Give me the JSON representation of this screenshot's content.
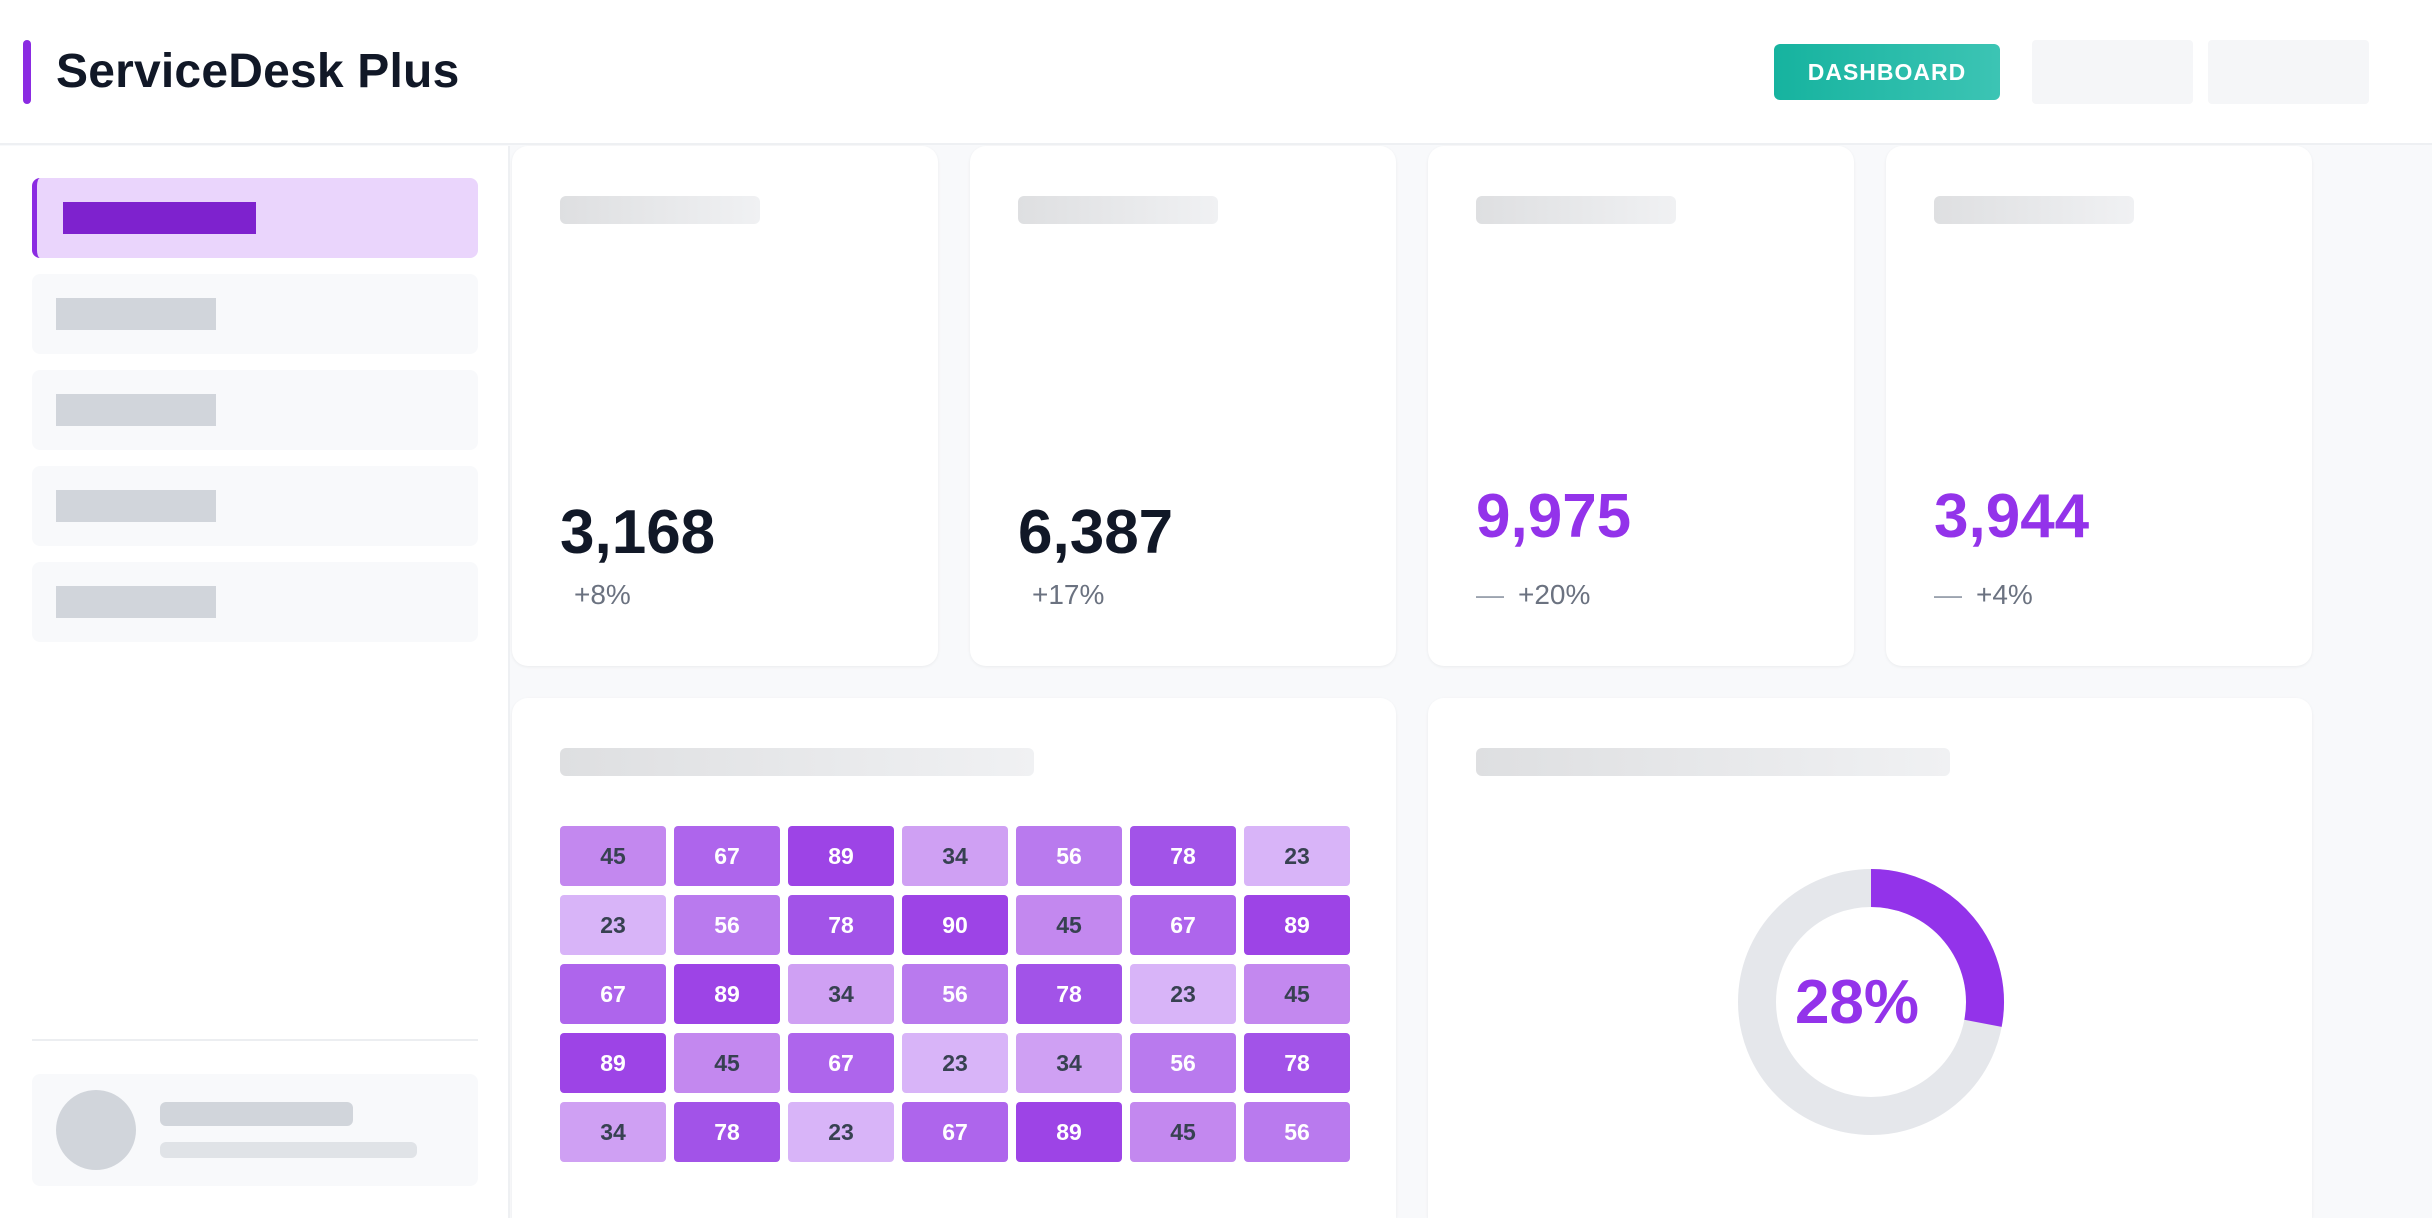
{
  "header": {
    "app_title": "ServiceDesk Plus",
    "dashboard_button": "DASHBOARD",
    "accent": "#8b2be2",
    "button_color": "#16b39f"
  },
  "sidebar": {
    "active_index": 0,
    "item_count": 5
  },
  "stats": [
    {
      "value": "3,168",
      "change": "+8%",
      "color": "#111827",
      "indicator": ""
    },
    {
      "value": "6,387",
      "change": "+17%",
      "color": "#111827",
      "indicator": ""
    },
    {
      "value": "9,975",
      "change": "+20%",
      "color": "#9333ea",
      "indicator": "—"
    },
    {
      "value": "3,944",
      "change": "+4%",
      "color": "#9333ea",
      "indicator": "—"
    }
  ],
  "heatmap": {
    "rows": [
      [
        45,
        67,
        89,
        34,
        56,
        78,
        23
      ],
      [
        23,
        56,
        78,
        90,
        45,
        67,
        89
      ],
      [
        67,
        89,
        34,
        56,
        78,
        23,
        45
      ],
      [
        89,
        45,
        67,
        23,
        34,
        56,
        78
      ],
      [
        34,
        78,
        23,
        67,
        89,
        45,
        56
      ]
    ]
  },
  "donut": {
    "percent": 28,
    "label": "28%",
    "fill_color": "#9333ea",
    "track_color": "#e5e7eb"
  }
}
